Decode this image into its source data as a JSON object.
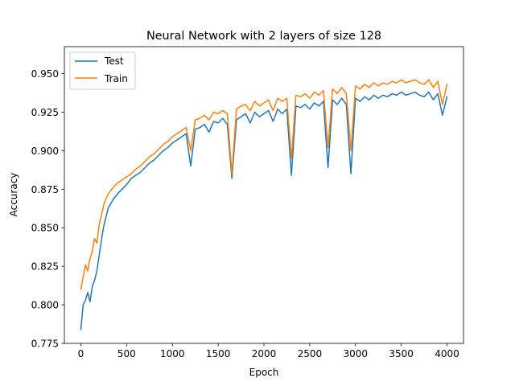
{
  "chart_data": {
    "type": "line",
    "title": "Neural Network with 2 layers of size 128",
    "xlabel": "Epoch",
    "ylabel": "Accuracy",
    "xlim": [
      -180,
      4180
    ],
    "ylim": [
      0.775,
      0.9675
    ],
    "xticks": [
      0,
      500,
      1000,
      1500,
      2000,
      2500,
      3000,
      3500,
      4000
    ],
    "yticks": [
      0.775,
      0.8,
      0.825,
      0.85,
      0.875,
      0.9,
      0.925,
      0.95
    ],
    "ytick_labels": [
      "0.775",
      "0.800",
      "0.825",
      "0.850",
      "0.875",
      "0.900",
      "0.925",
      "0.950"
    ],
    "grid": false,
    "legend_position": "top-left",
    "colors": {
      "Test": "#1f77b4",
      "Train": "#ff7f0e"
    },
    "series": [
      {
        "name": "Test",
        "x": [
          0,
          25,
          50,
          75,
          100,
          125,
          150,
          175,
          200,
          225,
          250,
          275,
          300,
          350,
          400,
          450,
          500,
          550,
          600,
          650,
          700,
          750,
          800,
          850,
          900,
          950,
          1000,
          1050,
          1100,
          1150,
          1200,
          1250,
          1300,
          1350,
          1400,
          1450,
          1500,
          1550,
          1600,
          1650,
          1700,
          1750,
          1800,
          1850,
          1900,
          1950,
          2000,
          2050,
          2100,
          2150,
          2200,
          2250,
          2300,
          2350,
          2400,
          2450,
          2500,
          2550,
          2600,
          2650,
          2700,
          2750,
          2800,
          2850,
          2900,
          2950,
          3000,
          3050,
          3100,
          3150,
          3200,
          3250,
          3300,
          3350,
          3400,
          3450,
          3500,
          3550,
          3600,
          3650,
          3700,
          3750,
          3800,
          3850,
          3900,
          3950,
          4000
        ],
        "values": [
          0.784,
          0.8,
          0.803,
          0.808,
          0.802,
          0.812,
          0.816,
          0.822,
          0.832,
          0.842,
          0.851,
          0.857,
          0.863,
          0.868,
          0.872,
          0.875,
          0.878,
          0.882,
          0.884,
          0.886,
          0.889,
          0.892,
          0.894,
          0.897,
          0.9,
          0.902,
          0.905,
          0.907,
          0.909,
          0.911,
          0.89,
          0.914,
          0.915,
          0.917,
          0.912,
          0.919,
          0.918,
          0.921,
          0.917,
          0.882,
          0.92,
          0.922,
          0.924,
          0.918,
          0.925,
          0.922,
          0.924,
          0.926,
          0.919,
          0.927,
          0.924,
          0.927,
          0.884,
          0.929,
          0.928,
          0.93,
          0.927,
          0.931,
          0.929,
          0.932,
          0.889,
          0.933,
          0.93,
          0.934,
          0.93,
          0.885,
          0.934,
          0.932,
          0.935,
          0.933,
          0.936,
          0.934,
          0.936,
          0.935,
          0.937,
          0.936,
          0.938,
          0.936,
          0.937,
          0.938,
          0.936,
          0.935,
          0.938,
          0.933,
          0.937,
          0.923,
          0.935
        ]
      },
      {
        "name": "Train",
        "x": [
          0,
          25,
          50,
          75,
          100,
          125,
          150,
          175,
          200,
          225,
          250,
          275,
          300,
          350,
          400,
          450,
          500,
          550,
          600,
          650,
          700,
          750,
          800,
          850,
          900,
          950,
          1000,
          1050,
          1100,
          1150,
          1200,
          1250,
          1300,
          1350,
          1400,
          1450,
          1500,
          1550,
          1600,
          1650,
          1700,
          1750,
          1800,
          1850,
          1900,
          1950,
          2000,
          2050,
          2100,
          2150,
          2200,
          2250,
          2300,
          2350,
          2400,
          2450,
          2500,
          2550,
          2600,
          2650,
          2700,
          2750,
          2800,
          2850,
          2900,
          2950,
          3000,
          3050,
          3100,
          3150,
          3200,
          3250,
          3300,
          3350,
          3400,
          3450,
          3500,
          3550,
          3600,
          3650,
          3700,
          3750,
          3800,
          3850,
          3900,
          3950,
          4000
        ],
        "values": [
          0.81,
          0.818,
          0.826,
          0.822,
          0.83,
          0.835,
          0.843,
          0.84,
          0.852,
          0.858,
          0.865,
          0.869,
          0.872,
          0.876,
          0.879,
          0.881,
          0.883,
          0.885,
          0.888,
          0.89,
          0.893,
          0.896,
          0.898,
          0.901,
          0.904,
          0.906,
          0.909,
          0.911,
          0.913,
          0.915,
          0.9,
          0.92,
          0.921,
          0.923,
          0.92,
          0.925,
          0.924,
          0.926,
          0.924,
          0.885,
          0.927,
          0.929,
          0.93,
          0.926,
          0.932,
          0.929,
          0.931,
          0.933,
          0.926,
          0.934,
          0.932,
          0.934,
          0.895,
          0.936,
          0.935,
          0.937,
          0.934,
          0.938,
          0.936,
          0.939,
          0.902,
          0.94,
          0.937,
          0.941,
          0.937,
          0.9,
          0.942,
          0.94,
          0.943,
          0.941,
          0.944,
          0.942,
          0.944,
          0.943,
          0.945,
          0.944,
          0.946,
          0.944,
          0.945,
          0.946,
          0.944,
          0.943,
          0.946,
          0.941,
          0.945,
          0.93,
          0.943
        ]
      }
    ]
  }
}
